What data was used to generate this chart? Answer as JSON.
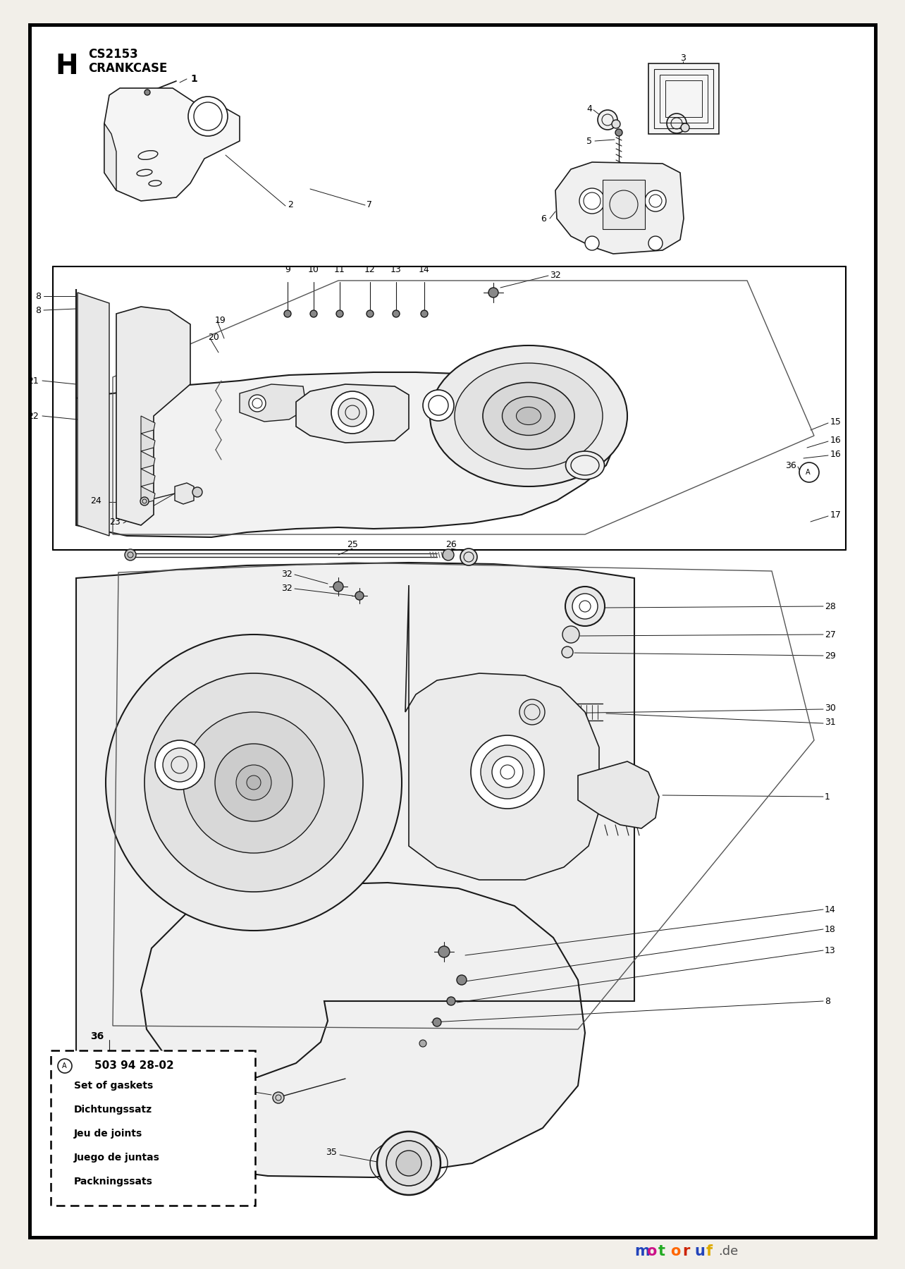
{
  "page_bg": "#f2efe9",
  "inner_bg": "#ffffff",
  "border_color": "#000000",
  "line_color": "#1a1a1a",
  "header_h": "H",
  "header_model": "CS2153",
  "header_section": "CRANKCASE",
  "motoruf_colors": {
    "m": "#2244bb",
    "o": "#cc1188",
    "t": "#22aa22",
    "o2": "#ff6600",
    "r": "#cc2200",
    "u": "#2244bb",
    "f": "#ddaa00",
    "de": "#555555"
  },
  "legend": {
    "part_number": "503 94 28-02",
    "lines": [
      "Set of gaskets",
      "Dichtungssatz",
      "Jeu de joints",
      "Juego de juntas",
      "Packningssats"
    ]
  }
}
